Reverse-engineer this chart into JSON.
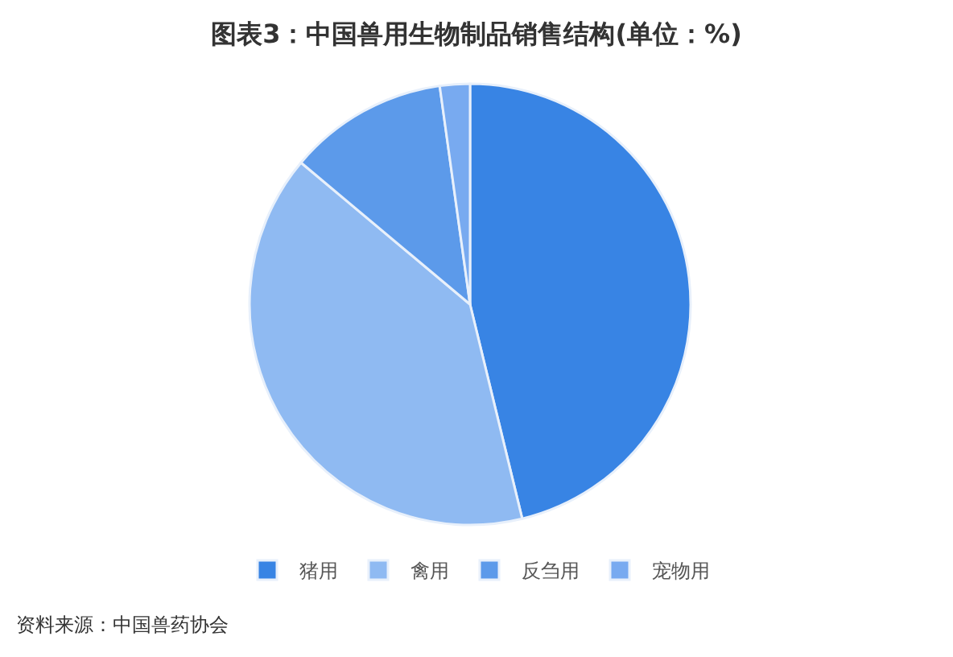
{
  "chart_data": {
    "type": "pie",
    "title": "图表3：中国兽用生物制品销售结构(单位：%)",
    "categories": [
      "猪用",
      "禽用",
      "反刍用",
      "宠物用"
    ],
    "values": [
      46.2,
      39.9,
      11.7,
      2.2
    ],
    "colors": [
      "#3884e4",
      "#8fbaf2",
      "#5c9aea",
      "#78aaf0"
    ],
    "legend": "bottom",
    "annotations": [
      "资料来源：中国兽药协会"
    ]
  }
}
